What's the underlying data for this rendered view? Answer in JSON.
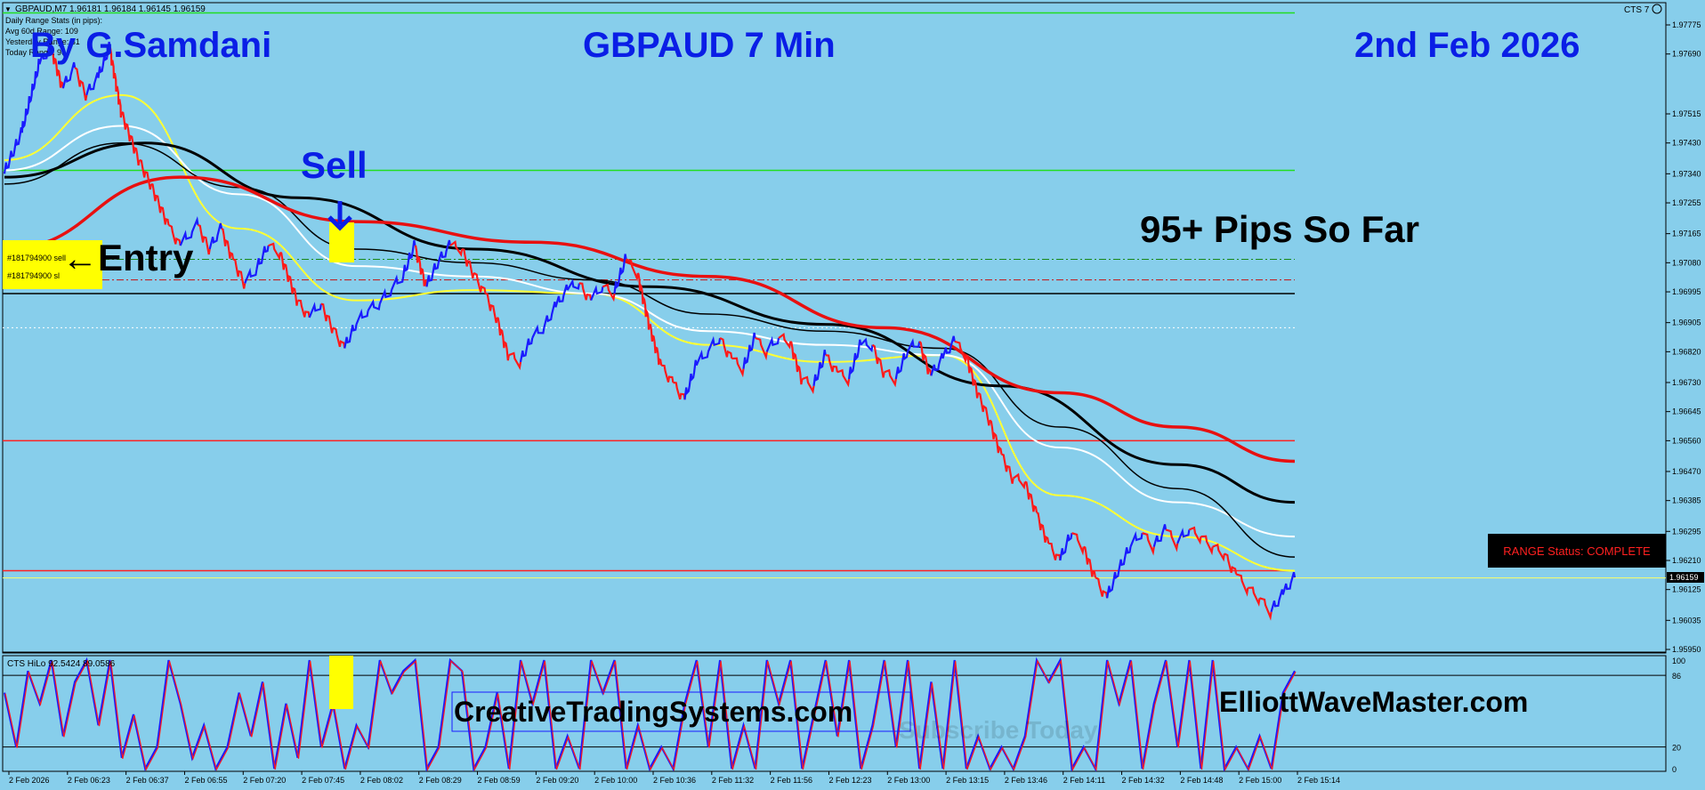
{
  "window": {
    "symbol_header": "GBPAUD,M7  1.96181 1.96184 1.96145 1.96159",
    "cts_label": "CTS 7"
  },
  "info_panel": {
    "line1": "Daily Range Stats (in pips):",
    "line2": "Avg 60d Range: 109",
    "line3": "Yesterday Range: 81",
    "line4": "Today Range: 96"
  },
  "overlay": {
    "author": "By G.Samdani",
    "pair_title": "GBPAUD 7 Min",
    "date": "2nd Feb 2026",
    "sell_label": "Sell",
    "entry_label": "Entry",
    "entry_arrow": "←",
    "pips_label": "95+ Pips So Far",
    "range_status": "RANGE Status: COMPLETE",
    "website_left": "CreativeTradingSystems.com",
    "website_right": "ElliottWaveMaster.com",
    "watermark": "Subscribe Today",
    "order_tp": "#181794900 sell",
    "order_sl": "#181794900 sl"
  },
  "colors": {
    "background": "#87ceeb",
    "bull": "#1a1aff",
    "bear": "#ff1a1a",
    "ma_yellow": "#ffff33",
    "ma_white": "#ffffff",
    "ma_black": "#000000",
    "ma_red": "#e81010",
    "title_blue": "#0a1ee6",
    "hline_green": "#22dd22",
    "hline_red": "#ff2020",
    "current_price": "#ffff66",
    "marker_yellow": "#ffff00"
  },
  "chart_data": [
    {
      "type": "line",
      "title": "GBPAUD 7 Min",
      "timeframe": "M7",
      "y_axis_ticks": [
        1.97775,
        1.9769,
        1.97515,
        1.9743,
        1.9734,
        1.97255,
        1.97165,
        1.9708,
        1.96995,
        1.96905,
        1.9682,
        1.9673,
        1.96645,
        1.9656,
        1.9647,
        1.96385,
        1.96295,
        1.9621,
        1.96125,
        1.96035,
        1.9595
      ],
      "current_price": 1.96159,
      "current_price_label": "1.96159",
      "x_axis_ticks": [
        "2 Feb 2026",
        "2 Feb 06:23",
        "2 Feb 06:37",
        "2 Feb 06:55",
        "2 Feb 07:20",
        "2 Feb 07:45",
        "2 Feb 08:02",
        "2 Feb 08:29",
        "2 Feb 08:59",
        "2 Feb 09:20",
        "2 Feb 10:00",
        "2 Feb 10:36",
        "2 Feb 11:32",
        "2 Feb 11:56",
        "2 Feb 12:23",
        "2 Feb 13:00",
        "2 Feb 13:15",
        "2 Feb 13:46",
        "2 Feb 14:11",
        "2 Feb 14:32",
        "2 Feb 14:48",
        "2 Feb 15:00",
        "2 Feb 15:14"
      ],
      "horizontal_lines": [
        {
          "color": "green",
          "price": 1.9781
        },
        {
          "color": "green",
          "price": 1.9735
        },
        {
          "color": "green-dashdot",
          "price": 1.9709
        },
        {
          "color": "red-dashdot",
          "price": 1.9703
        },
        {
          "color": "black",
          "price": 1.9699
        },
        {
          "color": "white-dotted",
          "price": 1.9689
        },
        {
          "color": "red",
          "price": 1.9656
        },
        {
          "color": "red",
          "price": 1.9618
        },
        {
          "color": "yellow",
          "price": 1.96159
        }
      ],
      "price_path": [
        [
          0,
          1.9734
        ],
        [
          3,
          1.9746
        ],
        [
          6,
          1.9766
        ],
        [
          8,
          1.9771
        ],
        [
          10,
          1.9759
        ],
        [
          12,
          1.9765
        ],
        [
          14,
          1.9757
        ],
        [
          16,
          1.9762
        ],
        [
          18,
          1.9771
        ],
        [
          20,
          1.9752
        ],
        [
          23,
          1.9738
        ],
        [
          25,
          1.9731
        ],
        [
          28,
          1.9719
        ],
        [
          30,
          1.9713
        ],
        [
          33,
          1.9719
        ],
        [
          35,
          1.9712
        ],
        [
          37,
          1.9718
        ],
        [
          39,
          1.9709
        ],
        [
          41,
          1.9702
        ],
        [
          43,
          1.9706
        ],
        [
          45,
          1.9713
        ],
        [
          47,
          1.9711
        ],
        [
          50,
          1.9697
        ],
        [
          52,
          1.9692
        ],
        [
          54,
          1.9696
        ],
        [
          56,
          1.9689
        ],
        [
          58,
          1.9683
        ],
        [
          60,
          1.969
        ],
        [
          62,
          1.9694
        ],
        [
          64,
          1.9696
        ],
        [
          66,
          1.97
        ],
        [
          68,
          1.9704
        ],
        [
          70,
          1.9713
        ],
        [
          72,
          1.9701
        ],
        [
          74,
          1.9708
        ],
        [
          76,
          1.9713
        ],
        [
          78,
          1.9712
        ],
        [
          80,
          1.9705
        ],
        [
          82,
          1.9699
        ],
        [
          84,
          1.9692
        ],
        [
          86,
          1.9681
        ],
        [
          88,
          1.9679
        ],
        [
          90,
          1.9686
        ],
        [
          92,
          1.9689
        ],
        [
          94,
          1.9695
        ],
        [
          96,
          1.97
        ],
        [
          98,
          1.9702
        ],
        [
          100,
          1.9697
        ],
        [
          102,
          1.9701
        ],
        [
          104,
          1.9699
        ],
        [
          106,
          1.9709
        ],
        [
          108,
          1.9705
        ],
        [
          110,
          1.969
        ],
        [
          112,
          1.9678
        ],
        [
          114,
          1.9673
        ],
        [
          116,
          1.9668
        ],
        [
          118,
          1.9678
        ],
        [
          120,
          1.9682
        ],
        [
          122,
          1.9686
        ],
        [
          124,
          1.968
        ],
        [
          126,
          1.9677
        ],
        [
          128,
          1.9686
        ],
        [
          130,
          1.9682
        ],
        [
          132,
          1.9686
        ],
        [
          134,
          1.9685
        ],
        [
          136,
          1.9674
        ],
        [
          138,
          1.9672
        ],
        [
          140,
          1.9681
        ],
        [
          142,
          1.9676
        ],
        [
          144,
          1.9674
        ],
        [
          146,
          1.9684
        ],
        [
          148,
          1.9684
        ],
        [
          150,
          1.9676
        ],
        [
          152,
          1.9674
        ],
        [
          154,
          1.9682
        ],
        [
          156,
          1.9685
        ],
        [
          158,
          1.9675
        ],
        [
          160,
          1.968
        ],
        [
          162,
          1.9685
        ],
        [
          164,
          1.9681
        ],
        [
          166,
          1.967
        ],
        [
          168,
          1.9662
        ],
        [
          170,
          1.9652
        ],
        [
          172,
          1.9645
        ],
        [
          174,
          1.9644
        ],
        [
          176,
          1.9635
        ],
        [
          178,
          1.9626
        ],
        [
          180,
          1.9621
        ],
        [
          182,
          1.9629
        ],
        [
          184,
          1.9625
        ],
        [
          186,
          1.9616
        ],
        [
          188,
          1.961
        ],
        [
          190,
          1.9618
        ],
        [
          192,
          1.9625
        ],
        [
          194,
          1.9629
        ],
        [
          196,
          1.9625
        ],
        [
          198,
          1.963
        ],
        [
          200,
          1.9626
        ],
        [
          202,
          1.963
        ],
        [
          204,
          1.9628
        ],
        [
          206,
          1.9625
        ],
        [
          208,
          1.9623
        ],
        [
          210,
          1.9617
        ],
        [
          212,
          1.9613
        ],
        [
          214,
          1.961
        ],
        [
          216,
          1.9606
        ],
        [
          218,
          1.9611
        ],
        [
          220,
          1.9616
        ]
      ],
      "moving_averages": [
        {
          "color": "yellow",
          "values": [
            [
              0,
              1.9738
            ],
            [
              20,
              1.9757
            ],
            [
              40,
              1.9718
            ],
            [
              60,
              1.9697
            ],
            [
              80,
              1.97
            ],
            [
              100,
              1.9699
            ],
            [
              120,
              1.9684
            ],
            [
              140,
              1.9679
            ],
            [
              160,
              1.9681
            ],
            [
              180,
              1.964
            ],
            [
              200,
              1.9628
            ],
            [
              220,
              1.9618
            ]
          ]
        },
        {
          "color": "white",
          "values": [
            [
              0,
              1.9735
            ],
            [
              20,
              1.9748
            ],
            [
              40,
              1.9728
            ],
            [
              60,
              1.9707
            ],
            [
              80,
              1.9704
            ],
            [
              100,
              1.9699
            ],
            [
              120,
              1.9688
            ],
            [
              140,
              1.9684
            ],
            [
              160,
              1.9681
            ],
            [
              180,
              1.9654
            ],
            [
              200,
              1.9638
            ],
            [
              220,
              1.9628
            ]
          ]
        },
        {
          "color": "black",
          "values": [
            [
              0,
              1.9731
            ],
            [
              20,
              1.9743
            ],
            [
              40,
              1.973
            ],
            [
              60,
              1.9712
            ],
            [
              80,
              1.9708
            ],
            [
              100,
              1.9703
            ],
            [
              120,
              1.9693
            ],
            [
              140,
              1.9688
            ],
            [
              160,
              1.9683
            ],
            [
              180,
              1.966
            ],
            [
              200,
              1.9642
            ],
            [
              220,
              1.9622
            ]
          ]
        },
        {
          "color": "black-thick",
          "values": [
            [
              0,
              1.9733
            ],
            [
              24,
              1.9743
            ],
            [
              50,
              1.9727
            ],
            [
              80,
              1.9712
            ],
            [
              110,
              1.9701
            ],
            [
              140,
              1.969
            ],
            [
              170,
              1.9672
            ],
            [
              200,
              1.9649
            ],
            [
              220,
              1.9638
            ]
          ]
        },
        {
          "color": "red",
          "values": [
            [
              0,
              1.9712
            ],
            [
              30,
              1.9733
            ],
            [
              60,
              1.972
            ],
            [
              90,
              1.9714
            ],
            [
              120,
              1.9704
            ],
            [
              150,
              1.9689
            ],
            [
              180,
              1.967
            ],
            [
              200,
              1.966
            ],
            [
              220,
              1.965
            ]
          ]
        }
      ]
    },
    {
      "type": "line",
      "title": "CTS HiLo 92.5424 89.0586",
      "y_axis_ticks": [
        100,
        86,
        20,
        0
      ],
      "levels": [
        86,
        20
      ],
      "oscillator": [
        [
          0,
          70
        ],
        [
          2,
          20
        ],
        [
          4,
          90
        ],
        [
          6,
          60
        ],
        [
          8,
          100
        ],
        [
          10,
          30
        ],
        [
          12,
          80
        ],
        [
          14,
          100
        ],
        [
          16,
          40
        ],
        [
          18,
          100
        ],
        [
          20,
          10
        ],
        [
          22,
          50
        ],
        [
          24,
          0
        ],
        [
          26,
          20
        ],
        [
          28,
          100
        ],
        [
          30,
          60
        ],
        [
          32,
          10
        ],
        [
          34,
          40
        ],
        [
          36,
          0
        ],
        [
          38,
          20
        ],
        [
          40,
          70
        ],
        [
          42,
          30
        ],
        [
          44,
          80
        ],
        [
          46,
          0
        ],
        [
          48,
          60
        ],
        [
          50,
          10
        ],
        [
          52,
          100
        ],
        [
          54,
          20
        ],
        [
          56,
          60
        ],
        [
          58,
          0
        ],
        [
          60,
          40
        ],
        [
          62,
          20
        ],
        [
          64,
          100
        ],
        [
          66,
          70
        ],
        [
          68,
          90
        ],
        [
          70,
          100
        ],
        [
          72,
          0
        ],
        [
          74,
          20
        ],
        [
          76,
          100
        ],
        [
          78,
          90
        ],
        [
          80,
          0
        ],
        [
          82,
          20
        ],
        [
          84,
          70
        ],
        [
          86,
          0
        ],
        [
          88,
          100
        ],
        [
          90,
          60
        ],
        [
          92,
          100
        ],
        [
          94,
          0
        ],
        [
          96,
          30
        ],
        [
          98,
          0
        ],
        [
          100,
          100
        ],
        [
          102,
          70
        ],
        [
          104,
          100
        ],
        [
          106,
          0
        ],
        [
          108,
          40
        ],
        [
          110,
          0
        ],
        [
          112,
          20
        ],
        [
          114,
          0
        ],
        [
          116,
          60
        ],
        [
          118,
          100
        ],
        [
          120,
          20
        ],
        [
          122,
          100
        ],
        [
          124,
          0
        ],
        [
          126,
          40
        ],
        [
          128,
          0
        ],
        [
          130,
          100
        ],
        [
          132,
          60
        ],
        [
          134,
          100
        ],
        [
          136,
          0
        ],
        [
          138,
          50
        ],
        [
          140,
          100
        ],
        [
          142,
          30
        ],
        [
          144,
          100
        ],
        [
          146,
          0
        ],
        [
          148,
          40
        ],
        [
          150,
          100
        ],
        [
          152,
          20
        ],
        [
          154,
          100
        ],
        [
          156,
          0
        ],
        [
          158,
          80
        ],
        [
          160,
          0
        ],
        [
          162,
          100
        ],
        [
          164,
          0
        ],
        [
          166,
          30
        ],
        [
          168,
          0
        ],
        [
          170,
          20
        ],
        [
          172,
          0
        ],
        [
          174,
          30
        ],
        [
          176,
          100
        ],
        [
          178,
          80
        ],
        [
          180,
          100
        ],
        [
          182,
          0
        ],
        [
          184,
          20
        ],
        [
          186,
          0
        ],
        [
          188,
          100
        ],
        [
          190,
          60
        ],
        [
          192,
          100
        ],
        [
          194,
          0
        ],
        [
          196,
          60
        ],
        [
          198,
          100
        ],
        [
          200,
          20
        ],
        [
          202,
          100
        ],
        [
          204,
          0
        ],
        [
          206,
          100
        ],
        [
          208,
          0
        ],
        [
          210,
          20
        ],
        [
          212,
          0
        ],
        [
          214,
          30
        ],
        [
          216,
          0
        ],
        [
          218,
          70
        ],
        [
          220,
          90
        ]
      ]
    }
  ]
}
